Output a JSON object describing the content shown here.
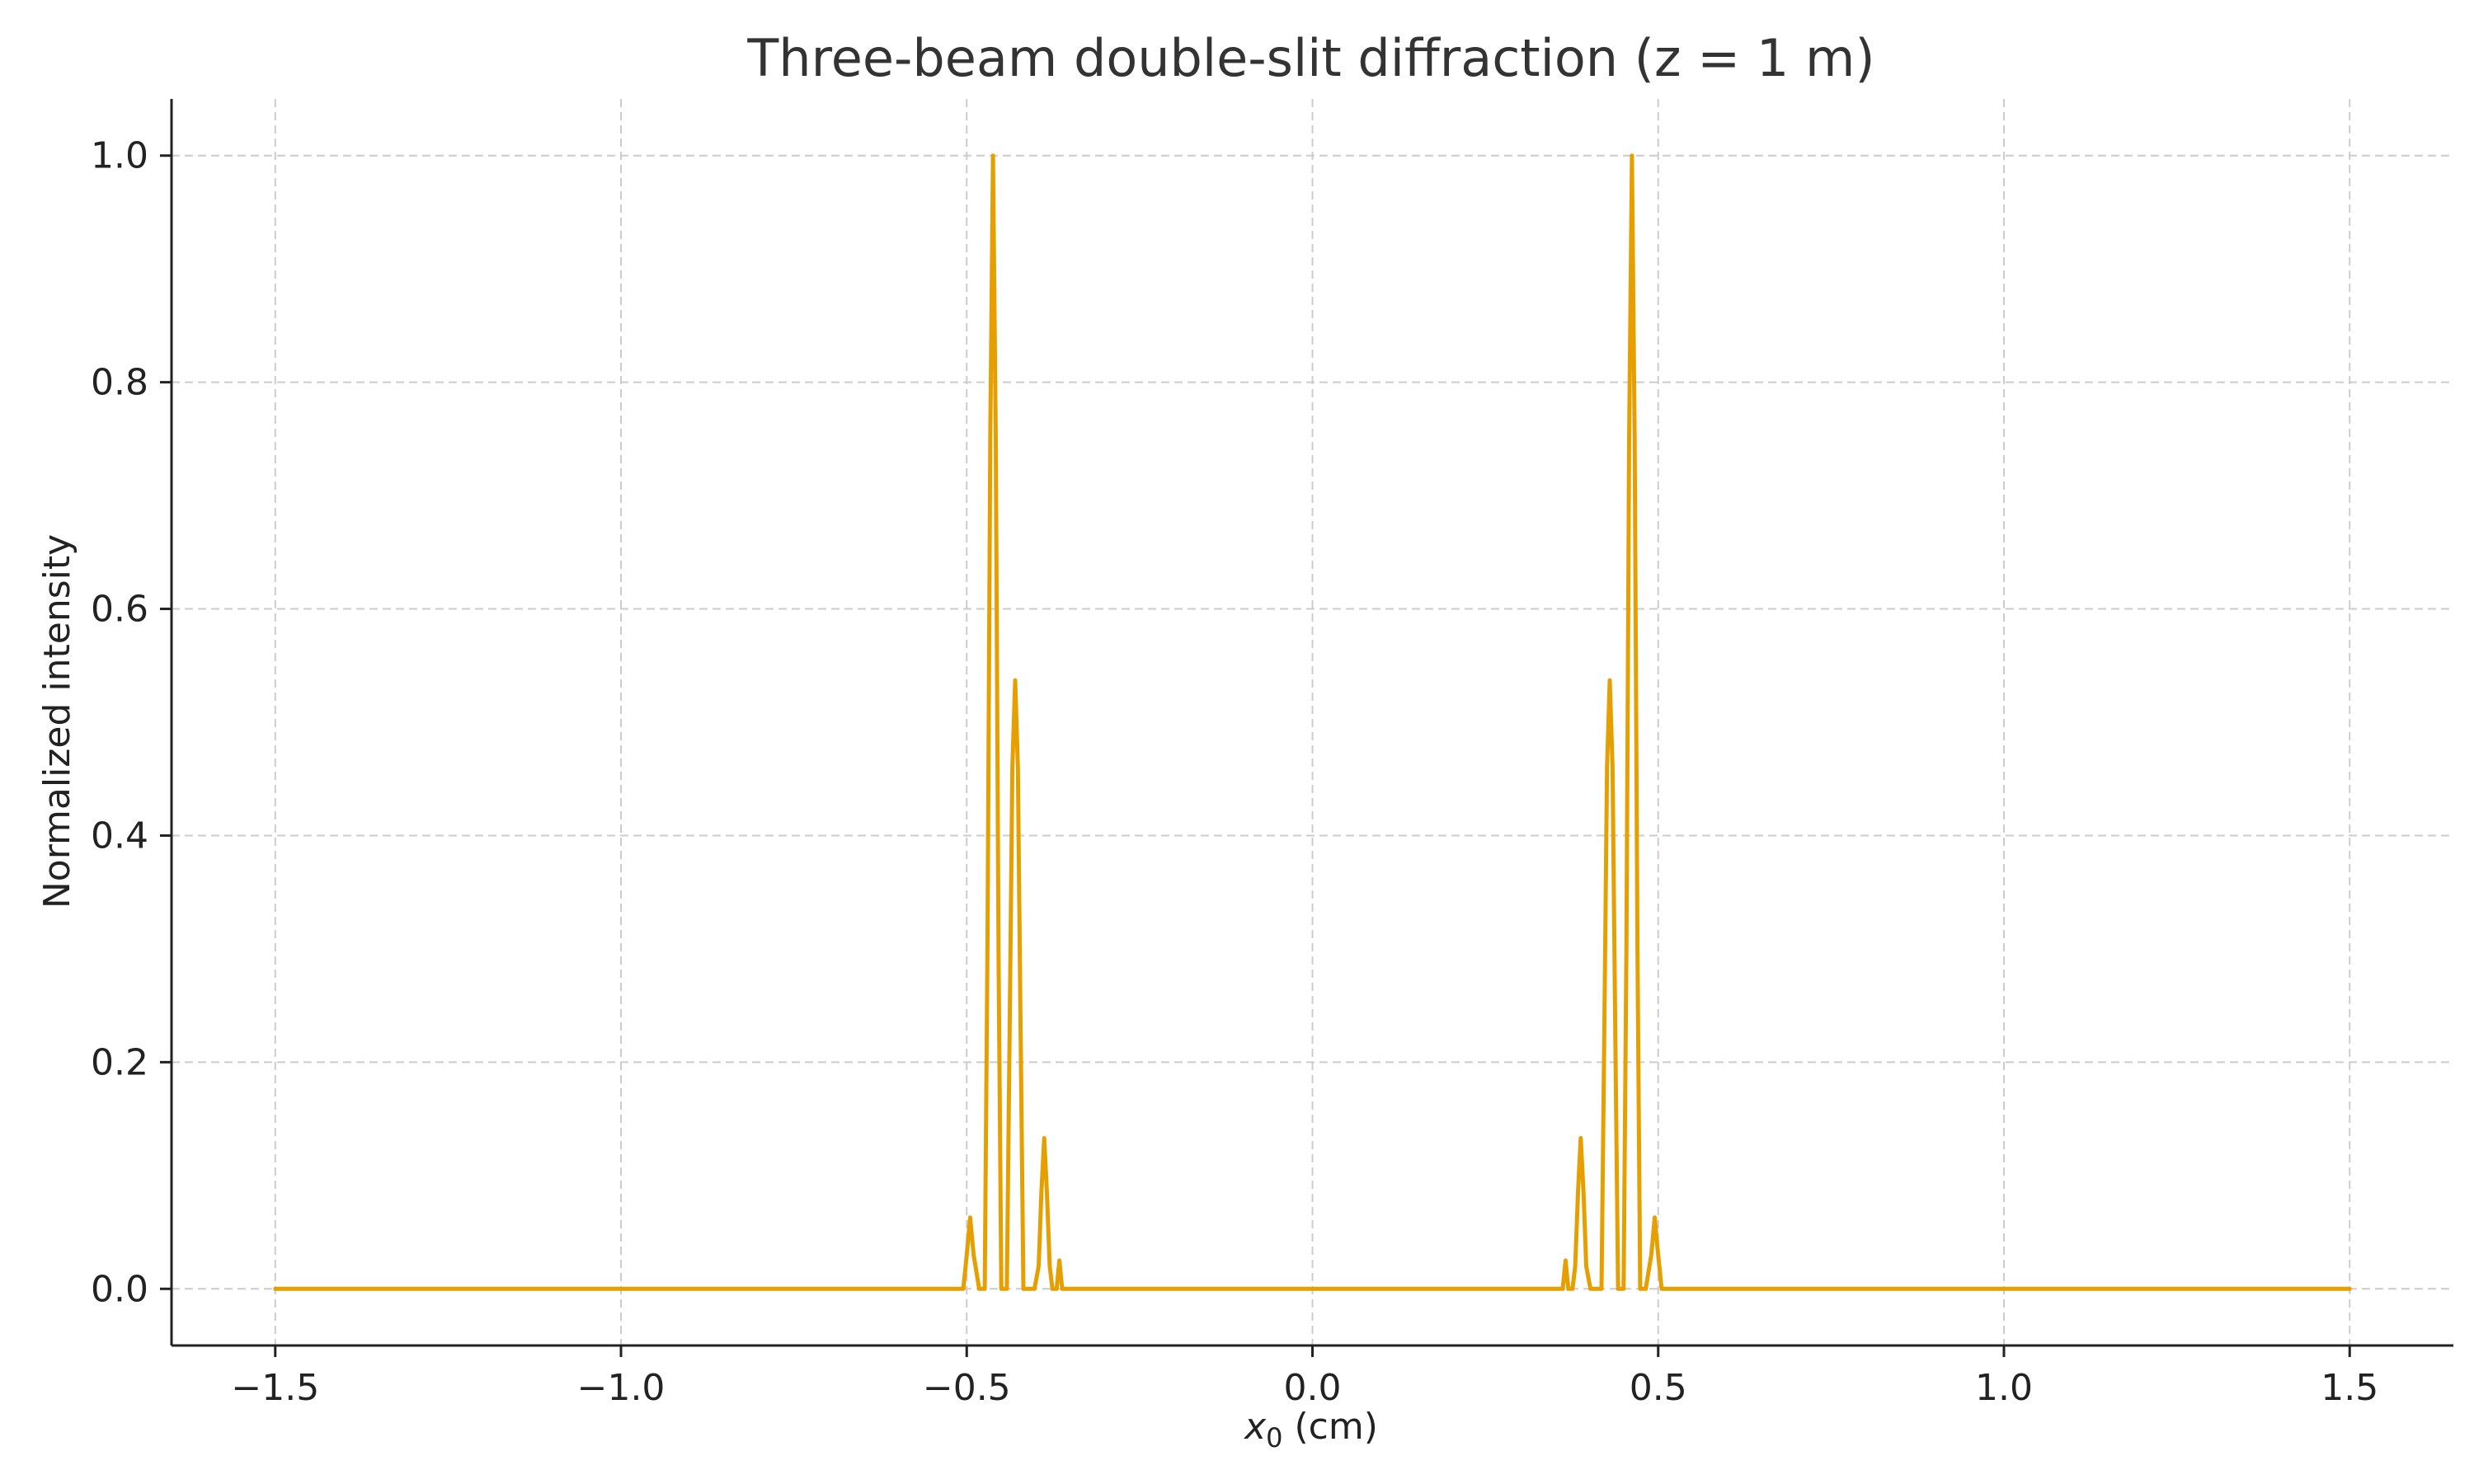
{
  "chart_data": {
    "type": "line",
    "title": "Three-beam double-slit diffraction (z = 1 m)",
    "xlabel_var": "x",
    "xlabel_sub": "0",
    "xlabel_rest": " (cm)",
    "ylabel": "Normalized intensity",
    "xlim": [
      -1.65,
      1.65
    ],
    "ylim": [
      -0.05,
      1.05
    ],
    "xticks": [
      -1.5,
      -1.0,
      -0.5,
      0.0,
      0.5,
      1.0,
      1.5
    ],
    "xtick_labels": [
      "−1.5",
      "−1.0",
      "−0.5",
      "0.0",
      "0.5",
      "1.0",
      "1.5"
    ],
    "yticks": [
      0.0,
      0.2,
      0.4,
      0.6,
      0.8,
      1.0
    ],
    "ytick_labels": [
      "0.0",
      "0.2",
      "0.4",
      "0.6",
      "0.8",
      "1.0"
    ],
    "grid": true,
    "legend": "none",
    "color": "#E69F00",
    "series": [
      {
        "x": [
          -1.5,
          -0.505,
          -0.5,
          -0.495,
          -0.49,
          -0.482,
          -0.474,
          -0.47,
          -0.466,
          -0.462,
          -0.458,
          -0.454,
          -0.45,
          -0.446,
          -0.442,
          -0.438,
          -0.434,
          -0.43,
          -0.426,
          -0.422,
          -0.418,
          -0.414,
          -0.41,
          -0.402,
          -0.396,
          -0.392,
          -0.388,
          -0.384,
          -0.38,
          -0.376,
          -0.37,
          -0.366,
          -0.362,
          -0.356,
          0.356,
          0.362,
          0.366,
          0.37,
          0.376,
          0.38,
          0.384,
          0.388,
          0.392,
          0.396,
          0.402,
          0.41,
          0.414,
          0.418,
          0.422,
          0.426,
          0.43,
          0.434,
          0.438,
          0.442,
          0.446,
          0.45,
          0.454,
          0.458,
          0.462,
          0.466,
          0.47,
          0.474,
          0.482,
          0.49,
          0.495,
          0.5,
          0.505,
          1.5
        ],
        "y": [
          0.0,
          0.0,
          0.03,
          0.063,
          0.03,
          0.0,
          0.0,
          0.3,
          0.75,
          1.0,
          0.75,
          0.3,
          0.0,
          0.0,
          0.0,
          0.22,
          0.46,
          0.537,
          0.46,
          0.22,
          0.0,
          0.0,
          0.0,
          0.0,
          0.02,
          0.085,
          0.133,
          0.085,
          0.02,
          0.0,
          0.0,
          0.025,
          0.0,
          0.0,
          0.0,
          0.0,
          0.025,
          0.0,
          0.0,
          0.02,
          0.085,
          0.133,
          0.085,
          0.02,
          0.0,
          0.0,
          0.0,
          0.0,
          0.22,
          0.46,
          0.537,
          0.46,
          0.22,
          0.0,
          0.0,
          0.0,
          0.3,
          0.75,
          1.0,
          0.75,
          0.3,
          0.0,
          0.0,
          0.03,
          0.063,
          0.03,
          0.0,
          0.0
        ]
      }
    ]
  }
}
